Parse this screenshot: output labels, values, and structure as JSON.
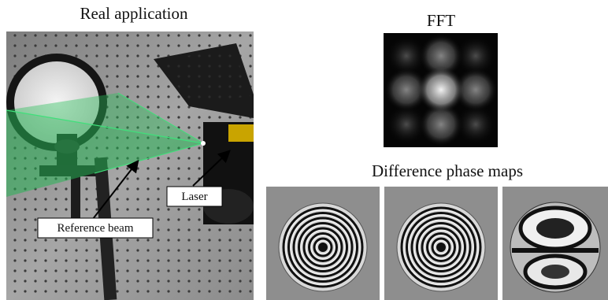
{
  "header": {
    "left_title": "Real application",
    "fft_title": "FFT",
    "phase_title": "Difference phase maps"
  },
  "labels": {
    "laser": "Laser",
    "reference_beam": "Reference beam"
  }
}
